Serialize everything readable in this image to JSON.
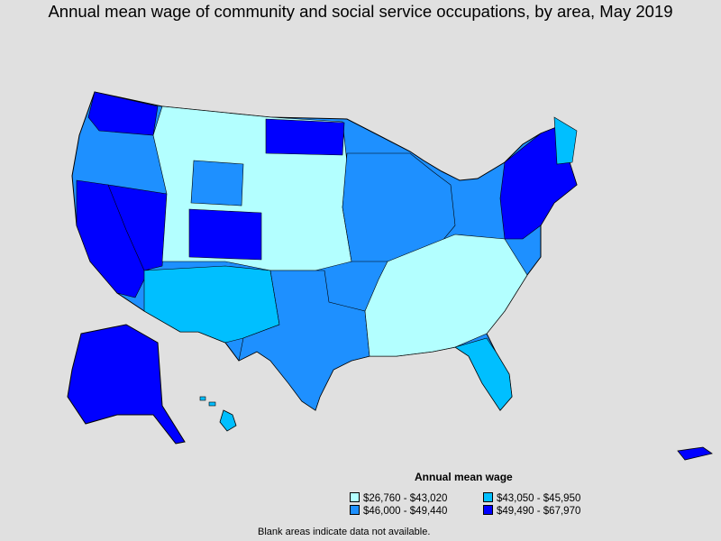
{
  "title": "Annual mean wage of community and social service occupations, by area, May 2019",
  "legend": {
    "title": "Annual mean wage",
    "items": [
      {
        "label": "$26,760 - $43,020",
        "color": "#b3ffff"
      },
      {
        "label": "$43,050 - $45,950",
        "color": "#00bfff"
      },
      {
        "label": "$46,000 - $49,440",
        "color": "#1e90ff"
      },
      {
        "label": "$49,490 - $67,970",
        "color": "#0000ff"
      }
    ]
  },
  "note": "Blank areas indicate data not available.",
  "colors": {
    "background": "#e0e0e0",
    "border": "#000000"
  }
}
